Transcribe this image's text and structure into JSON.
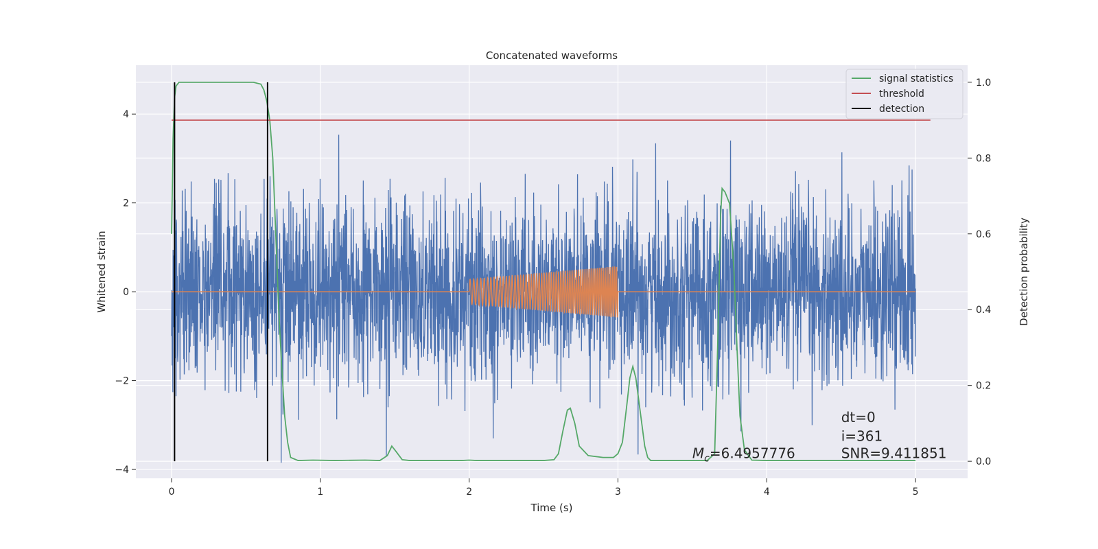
{
  "chart_data": {
    "type": "line",
    "title": "Concatenated waveforms",
    "xlabel": "Time (s)",
    "ylabel": "Whitened strain",
    "ylabel_right": "Detection probability",
    "xlim": [
      -0.24,
      5.35
    ],
    "ylim": [
      -4.2,
      5.1
    ],
    "ylim_right": [
      -0.045,
      1.045
    ],
    "x_ticks": [
      0,
      1,
      2,
      3,
      4,
      5
    ],
    "y_ticks": [
      -4,
      -2,
      0,
      2,
      4
    ],
    "y_ticks_right": [
      0.0,
      0.2,
      0.4,
      0.6,
      0.8,
      1.0
    ],
    "grid": true,
    "legend_position": "top-right",
    "colors": {
      "background": "#eaeaf2",
      "grid": "#ffffff",
      "strain": "#4c72b0",
      "template": "#dd8452",
      "signal_statistics": "#55a868",
      "threshold": "#c44e52",
      "detection": "#000000"
    },
    "series": [
      {
        "name": "signal statistics",
        "axis": "right",
        "x": [
          0.0,
          0.01,
          0.02,
          0.03,
          0.05,
          0.1,
          0.2,
          0.4,
          0.55,
          0.6,
          0.62,
          0.64,
          0.66,
          0.68,
          0.7,
          0.72,
          0.74,
          0.76,
          0.78,
          0.8,
          0.85,
          0.95,
          1.1,
          1.3,
          1.4,
          1.45,
          1.48,
          1.51,
          1.55,
          1.6,
          1.8,
          1.95,
          2.0,
          2.05,
          2.2,
          2.5,
          2.57,
          2.6,
          2.63,
          2.66,
          2.68,
          2.71,
          2.74,
          2.8,
          2.9,
          2.97,
          3.0,
          3.03,
          3.06,
          3.08,
          3.1,
          3.12,
          3.15,
          3.18,
          3.2,
          3.22,
          3.25,
          3.3,
          3.5,
          3.6,
          3.65,
          3.67,
          3.69,
          3.7,
          3.72,
          3.75,
          3.78,
          3.8,
          3.82,
          3.85,
          3.9,
          4.0,
          4.5,
          5.0
        ],
        "values": [
          0.6,
          0.85,
          0.96,
          0.99,
          1.0,
          1.0,
          1.0,
          1.0,
          1.0,
          0.995,
          0.98,
          0.95,
          0.9,
          0.8,
          0.6,
          0.4,
          0.25,
          0.12,
          0.05,
          0.01,
          0.002,
          0.003,
          0.002,
          0.003,
          0.002,
          0.015,
          0.04,
          0.025,
          0.004,
          0.002,
          0.002,
          0.002,
          0.003,
          0.002,
          0.002,
          0.002,
          0.004,
          0.02,
          0.08,
          0.135,
          0.14,
          0.1,
          0.04,
          0.015,
          0.01,
          0.01,
          0.02,
          0.05,
          0.15,
          0.22,
          0.25,
          0.22,
          0.13,
          0.04,
          0.01,
          0.002,
          0.002,
          0.002,
          0.002,
          0.002,
          0.02,
          0.3,
          0.65,
          0.72,
          0.71,
          0.68,
          0.5,
          0.3,
          0.12,
          0.03,
          0.003,
          0.002,
          0.002,
          0.002
        ]
      },
      {
        "name": "threshold",
        "axis": "right",
        "x": [
          0.0,
          5.1
        ],
        "values": [
          0.9,
          0.9
        ]
      },
      {
        "name": "detection",
        "axis": "right",
        "x": [
          0.02,
          0.645
        ],
        "values": [
          1.0,
          1.0
        ]
      },
      {
        "name": "",
        "axis": "left",
        "kind": "noise",
        "x_range": [
          0.0,
          5.0
        ],
        "sigma": 1.0,
        "max_abs": 3.85
      },
      {
        "name": "",
        "axis": "left",
        "kind": "chirp",
        "x_range": [
          2.0,
          3.0
        ],
        "amplitude_start": 0.28,
        "amplitude_end": 0.58,
        "baseline": 0.0
      }
    ],
    "annotations": [
      {
        "text": "M",
        "sub": "c",
        "suffix": "=6.4957776",
        "x": 3.5,
        "y_right": 0.005
      },
      {
        "text": "dt=0",
        "x": 4.5,
        "y_right": 0.1
      },
      {
        "text": "i=361",
        "x": 4.5,
        "y_right": 0.05
      },
      {
        "text": "SNR=9.411851",
        "x": 4.5,
        "y_right": 0.005
      }
    ]
  }
}
